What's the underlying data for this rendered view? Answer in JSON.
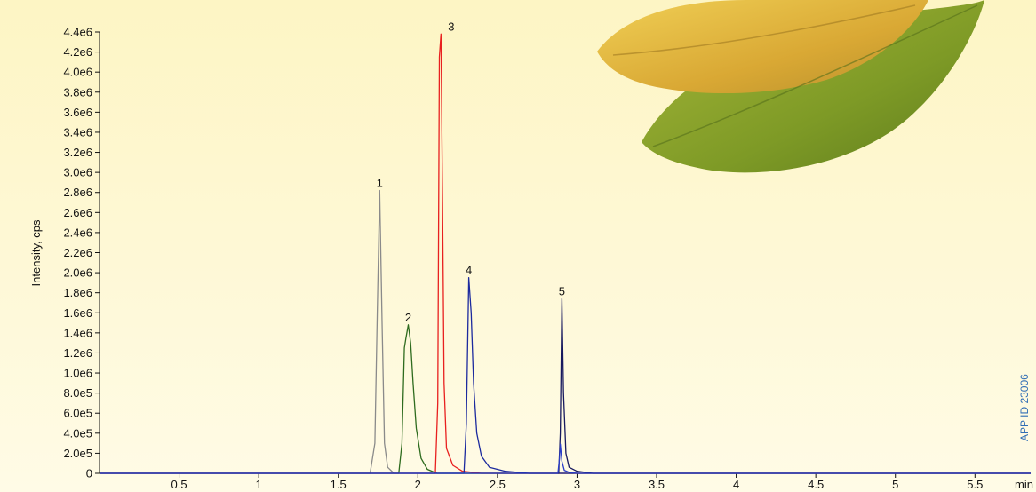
{
  "chart_data": {
    "type": "line",
    "title": "",
    "xlabel": "min",
    "ylabel": "Intensity, cps",
    "xlim": [
      0,
      5.85
    ],
    "ylim": [
      0,
      4400000
    ],
    "x_ticks": [
      0.5,
      1,
      1.5,
      2,
      2.5,
      3,
      3.5,
      4,
      4.5,
      5,
      5.5
    ],
    "x_tick_labels": [
      "0.5",
      "1",
      "1.5",
      "2",
      "2.5",
      "3",
      "3.5",
      "4",
      "4.5",
      "5",
      "5.5"
    ],
    "y_ticks": [
      0,
      200000,
      400000,
      600000,
      800000,
      1000000,
      1200000,
      1400000,
      1600000,
      1800000,
      2000000,
      2200000,
      2400000,
      2600000,
      2800000,
      3000000,
      3200000,
      3400000,
      3600000,
      3800000,
      4000000,
      4200000,
      4400000
    ],
    "y_tick_labels": [
      "0",
      "2.0e5",
      "4.0e5",
      "6.0e5",
      "8.0e5",
      "1.0e6",
      "1.2e6",
      "1.4e6",
      "1.6e6",
      "1.8e6",
      "2.0e6",
      "2.2e6",
      "2.4e6",
      "2.6e6",
      "2.8e6",
      "3.0e6",
      "3.2e6",
      "3.4e6",
      "3.6e6",
      "3.8e6",
      "4.0e6",
      "4.2e6",
      "4.4e6"
    ],
    "grid": false,
    "legend": "none",
    "series": [
      {
        "label": "1",
        "color": "#8a8a8a",
        "x": [
          0.0,
          1.7,
          1.73,
          1.745,
          1.76,
          1.775,
          1.79,
          1.81,
          1.85,
          5.85
        ],
        "y": [
          0,
          0,
          300000,
          1600000,
          2820000,
          1500000,
          300000,
          60000,
          0,
          0
        ]
      },
      {
        "label": "2",
        "color": "#2e6b1e",
        "x": [
          0.0,
          1.88,
          1.9,
          1.915,
          1.925,
          1.94,
          1.955,
          1.97,
          1.99,
          2.02,
          2.06,
          2.12,
          5.85
        ],
        "y": [
          0,
          0,
          300000,
          1250000,
          1350000,
          1480000,
          1300000,
          900000,
          450000,
          150000,
          40000,
          0,
          0
        ]
      },
      {
        "label": "3",
        "color": "#e8201f",
        "x": [
          0.0,
          2.11,
          2.125,
          2.135,
          2.145,
          2.155,
          2.165,
          2.18,
          2.22,
          2.28,
          2.4,
          5.85
        ],
        "y": [
          0,
          0,
          700000,
          4150000,
          4380000,
          2700000,
          900000,
          250000,
          80000,
          20000,
          0,
          0
        ]
      },
      {
        "label": "4",
        "color": "#1c2a9e",
        "x": [
          0.0,
          2.29,
          2.305,
          2.32,
          2.335,
          2.35,
          2.37,
          2.4,
          2.45,
          2.55,
          2.7,
          5.85
        ],
        "y": [
          0,
          0,
          500000,
          1950000,
          1600000,
          900000,
          400000,
          170000,
          60000,
          20000,
          0,
          0
        ]
      },
      {
        "label": "5",
        "color": "#16185e",
        "x": [
          0.0,
          2.885,
          2.895,
          2.905,
          2.915,
          2.93,
          2.95,
          3.0,
          3.1,
          5.85
        ],
        "y": [
          0,
          0,
          400000,
          1740000,
          800000,
          200000,
          60000,
          20000,
          0,
          0
        ]
      },
      {
        "label": "",
        "color": "#2a3dc8",
        "x": [
          0.0,
          2.88,
          2.89,
          2.895,
          2.905,
          2.92,
          2.95,
          3.0,
          5.85
        ],
        "y": [
          0,
          0,
          150000,
          290000,
          120000,
          30000,
          10000,
          0,
          0
        ]
      }
    ],
    "annotations": [
      {
        "text": "1",
        "x": 1.76,
        "y": 2820000
      },
      {
        "text": "2",
        "x": 1.94,
        "y": 1480000
      },
      {
        "text": "3",
        "x": 2.145,
        "y": 4380000
      },
      {
        "text": "4",
        "x": 2.32,
        "y": 1950000
      },
      {
        "text": "5",
        "x": 2.905,
        "y": 1740000
      }
    ],
    "background": {
      "top_color": "#fdf5c4",
      "bottom_color": "#fffbe6",
      "leaf_yellow": "#e2b53b",
      "leaf_green": "#8fa52b"
    }
  },
  "watermark": "APP ID 23006"
}
